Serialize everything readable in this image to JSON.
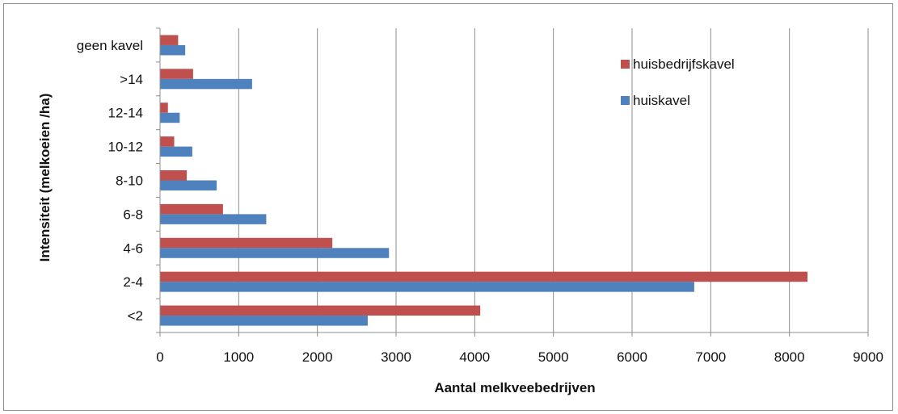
{
  "chart_data": {
    "type": "bar",
    "orientation": "horizontal",
    "categories": [
      "<2",
      "2-4",
      "4-6",
      "6-8",
      "8-10",
      "10-12",
      "12-14",
      ">14",
      "geen kavel"
    ],
    "series": [
      {
        "name": "huisbedrijfskavel",
        "color": "#c0504d",
        "values": [
          4070,
          8230,
          2190,
          800,
          340,
          180,
          100,
          420,
          230
        ]
      },
      {
        "name": "huiskavel",
        "color": "#4f81bd",
        "values": [
          2640,
          6790,
          2910,
          1350,
          720,
          410,
          250,
          1170,
          320
        ]
      }
    ],
    "xlabel": "Aantal melkveebedrijven",
    "ylabel": "Intensiteit (melkoeien /ha)",
    "xlim": [
      0,
      9000
    ],
    "xticks": [
      0,
      1000,
      2000,
      3000,
      4000,
      5000,
      6000,
      7000,
      8000,
      9000
    ],
    "grid": "vertical",
    "legend_position": "top-right"
  }
}
